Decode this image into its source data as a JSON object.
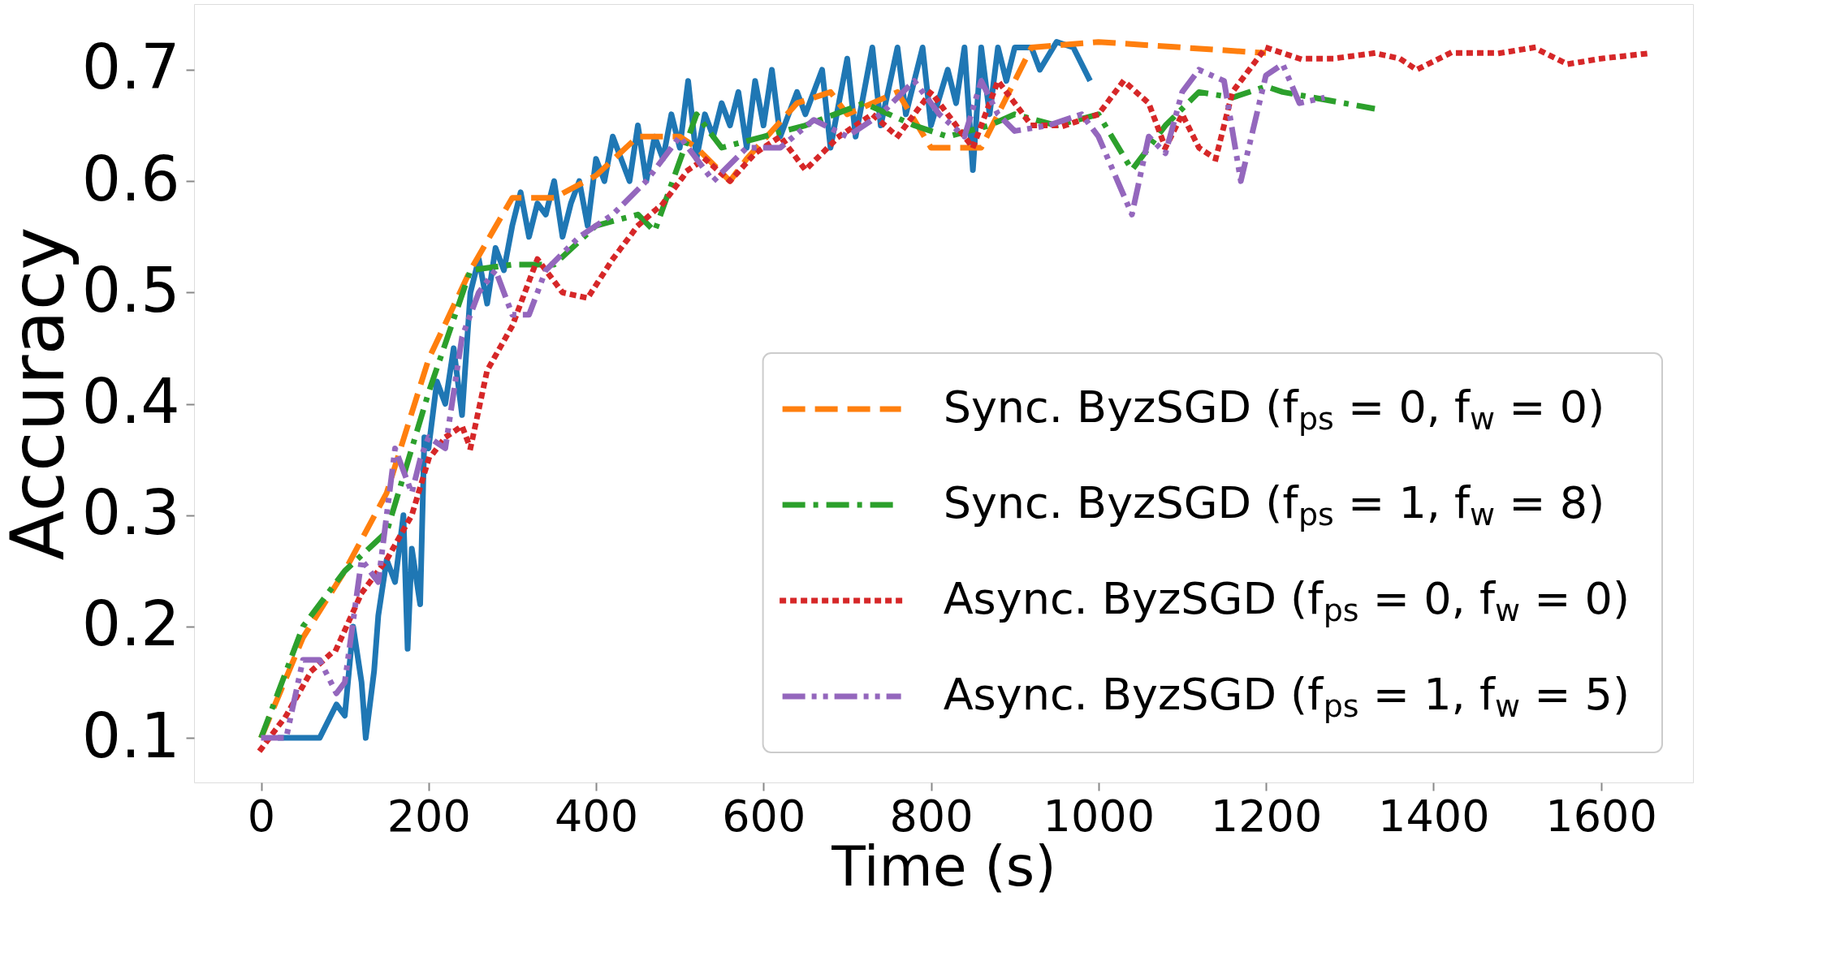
{
  "chart_data": {
    "type": "line",
    "xlabel": "Time (s)",
    "ylabel": "Accuracy",
    "xlim": [
      -80,
      1710
    ],
    "ylim": [
      0.06,
      0.759
    ],
    "xticks": [
      0,
      200,
      400,
      600,
      800,
      {
        "value": 1000,
        "label": "1000"
      },
      {
        "value": 1200,
        "label": "1200"
      },
      {
        "value": 1400,
        "label": "1400"
      },
      {
        "value": 1600,
        "label": "1600"
      }
    ],
    "yticks": [
      0.1,
      0.2,
      0.3,
      0.4,
      0.5,
      0.6,
      0.7
    ],
    "grid": false,
    "legend": "bottom right",
    "marker": "none",
    "series": [
      {
        "color": "#1f77b4",
        "line_style": "solid",
        "x": [
          20,
          50,
          70,
          90,
          100,
          110,
          120,
          125,
          135,
          140,
          150,
          160,
          170,
          175,
          180,
          190,
          195,
          200,
          210,
          220,
          230,
          240,
          250,
          260,
          270,
          280,
          290,
          300,
          310,
          320,
          330,
          340,
          350,
          360,
          370,
          380,
          390,
          400,
          410,
          420,
          430,
          440,
          450,
          460,
          470,
          480,
          490,
          500,
          510,
          520,
          530,
          540,
          550,
          560,
          570,
          580,
          590,
          600,
          610,
          620,
          640,
          650,
          670,
          680,
          700,
          710,
          730,
          740,
          760,
          770,
          790,
          800,
          820,
          830,
          840,
          850,
          860,
          870,
          880,
          890,
          900,
          920,
          930,
          950,
          970,
          990
        ],
        "values": [
          0.1,
          0.1,
          0.1,
          0.13,
          0.12,
          0.2,
          0.15,
          0.1,
          0.16,
          0.21,
          0.26,
          0.24,
          0.3,
          0.18,
          0.27,
          0.22,
          0.37,
          0.36,
          0.42,
          0.4,
          0.45,
          0.39,
          0.5,
          0.53,
          0.49,
          0.54,
          0.52,
          0.56,
          0.59,
          0.55,
          0.58,
          0.57,
          0.6,
          0.55,
          0.58,
          0.6,
          0.56,
          0.62,
          0.6,
          0.64,
          0.62,
          0.6,
          0.65,
          0.6,
          0.64,
          0.62,
          0.66,
          0.63,
          0.69,
          0.62,
          0.66,
          0.64,
          0.67,
          0.65,
          0.68,
          0.63,
          0.69,
          0.65,
          0.7,
          0.64,
          0.68,
          0.66,
          0.7,
          0.63,
          0.71,
          0.64,
          0.72,
          0.65,
          0.72,
          0.66,
          0.72,
          0.65,
          0.7,
          0.67,
          0.72,
          0.61,
          0.72,
          0.66,
          0.72,
          0.69,
          0.72,
          0.72,
          0.7,
          0.725,
          0.72,
          0.69
        ]
      },
      {
        "name": "Sync. ByzSGD (f$_{ps}$ = 0, f$_{w}$ = 0)",
        "color": "#ff7f0e",
        "line_style": "dashed",
        "x": [
          0,
          50,
          100,
          150,
          200,
          250,
          300,
          350,
          400,
          450,
          500,
          520,
          560,
          580,
          640,
          680,
          700,
          760,
          800,
          860,
          920,
          1000,
          1100,
          1200
        ],
        "values": [
          0.1,
          0.19,
          0.25,
          0.32,
          0.44,
          0.52,
          0.585,
          0.585,
          0.605,
          0.64,
          0.64,
          0.63,
          0.6,
          0.62,
          0.67,
          0.68,
          0.66,
          0.68,
          0.63,
          0.63,
          0.72,
          0.725,
          0.72,
          0.715
        ]
      },
      {
        "name": "Sync. ByzSGD (f$_{ps}$ = 1, f$_{w}$ = 8)",
        "color": "#2ca02c",
        "line_style": "dashdot",
        "x": [
          0,
          50,
          100,
          150,
          200,
          250,
          300,
          350,
          400,
          450,
          470,
          520,
          550,
          600,
          650,
          720,
          780,
          820,
          870,
          900,
          950,
          1000,
          1040,
          1080,
          1120,
          1160,
          1200,
          1220,
          1330
        ],
        "values": [
          0.1,
          0.2,
          0.25,
          0.285,
          0.41,
          0.52,
          0.525,
          0.525,
          0.56,
          0.57,
          0.555,
          0.66,
          0.63,
          0.64,
          0.65,
          0.67,
          0.65,
          0.64,
          0.65,
          0.66,
          0.65,
          0.66,
          0.61,
          0.65,
          0.68,
          0.675,
          0.685,
          0.68,
          0.665
        ]
      },
      {
        "name": "Async. ByzSGD (f$_{ps}$ = 0, f$_{w}$ = 0)",
        "color": "#d62728",
        "line_style": "dotted",
        "x": [
          0,
          30,
          60,
          90,
          120,
          150,
          180,
          200,
          220,
          240,
          250,
          270,
          300,
          330,
          360,
          390,
          420,
          450,
          480,
          510,
          530,
          560,
          590,
          620,
          650,
          690,
          730,
          760,
          800,
          850,
          880,
          920,
          960,
          1000,
          1030,
          1060,
          1080,
          1100,
          1120,
          1140,
          1160,
          1200,
          1240,
          1280,
          1330,
          1360,
          1380,
          1420,
          1480,
          1520,
          1560,
          1600,
          1660
        ],
        "values": [
          0.09,
          0.12,
          0.16,
          0.18,
          0.23,
          0.26,
          0.3,
          0.35,
          0.37,
          0.38,
          0.36,
          0.43,
          0.47,
          0.53,
          0.5,
          0.495,
          0.53,
          0.56,
          0.58,
          0.61,
          0.62,
          0.6,
          0.625,
          0.64,
          0.61,
          0.64,
          0.66,
          0.64,
          0.68,
          0.63,
          0.69,
          0.65,
          0.65,
          0.66,
          0.69,
          0.67,
          0.63,
          0.66,
          0.63,
          0.62,
          0.68,
          0.72,
          0.71,
          0.71,
          0.715,
          0.71,
          0.7,
          0.715,
          0.715,
          0.72,
          0.705,
          0.71,
          0.715
        ]
      },
      {
        "name": "Async. ByzSGD (f$_{ps}$ = 1, f$_{w}$ = 5)",
        "color": "#9467bd",
        "line_style": "dashdotdot",
        "x": [
          0,
          30,
          50,
          70,
          90,
          100,
          120,
          140,
          160,
          180,
          190,
          200,
          220,
          240,
          260,
          280,
          300,
          320,
          340,
          380,
          420,
          460,
          500,
          540,
          580,
          620,
          660,
          700,
          740,
          780,
          810,
          840,
          860,
          880,
          900,
          940,
          980,
          1000,
          1040,
          1060,
          1080,
          1100,
          1120,
          1150,
          1170,
          1200,
          1220,
          1240,
          1270
        ],
        "values": [
          0.1,
          0.1,
          0.17,
          0.17,
          0.14,
          0.15,
          0.26,
          0.24,
          0.36,
          0.32,
          0.35,
          0.37,
          0.36,
          0.46,
          0.5,
          0.52,
          0.48,
          0.48,
          0.52,
          0.55,
          0.57,
          0.6,
          0.64,
          0.6,
          0.63,
          0.63,
          0.655,
          0.64,
          0.66,
          0.69,
          0.66,
          0.64,
          0.69,
          0.66,
          0.645,
          0.65,
          0.66,
          0.64,
          0.57,
          0.64,
          0.625,
          0.68,
          0.7,
          0.69,
          0.6,
          0.695,
          0.705,
          0.67,
          0.675
        ]
      }
    ]
  }
}
